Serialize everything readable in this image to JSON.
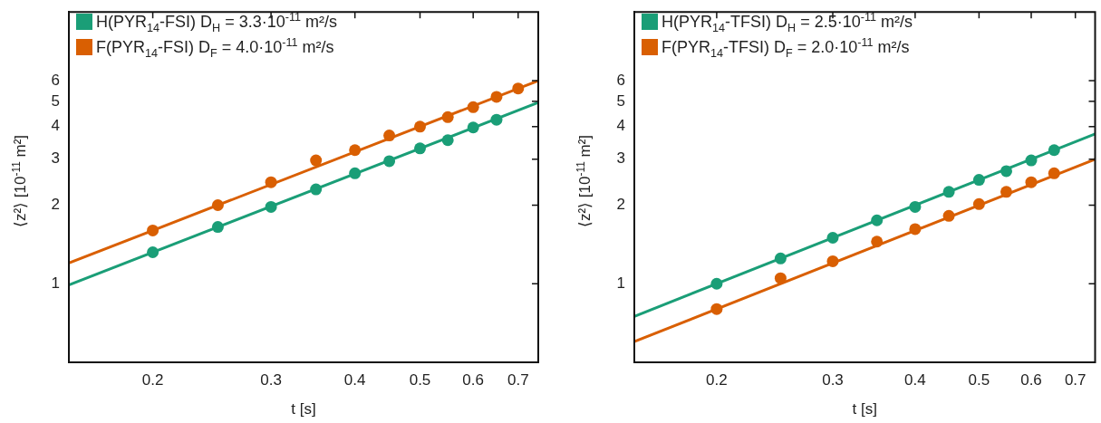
{
  "chart_data": [
    {
      "type": "scatter",
      "xlabel": "t [s]",
      "ylabel": "⟨z²⟩  [10$^{-11}$ m²]",
      "log": "xy",
      "grid": false,
      "legend": "top left",
      "xlim": [
        0.15,
        0.75
      ],
      "ylim": [
        0.5,
        11
      ],
      "xticks": [
        0.2,
        0.3,
        0.4,
        0.5,
        0.6,
        0.7
      ],
      "yticks": [
        1,
        2,
        3,
        4,
        5,
        6
      ],
      "series": [
        {
          "name": "H(PYR$_{14}$-FSI) D$_{H}$ = 3.3·10$^{-11}$ m²/s",
          "marker": "circle",
          "color": "#1a9e77",
          "x": [
            0.2,
            0.25,
            0.3,
            0.35,
            0.4,
            0.45,
            0.5,
            0.55,
            0.6,
            0.65
          ],
          "values": [
            1.32,
            1.65,
            1.97,
            2.3,
            2.65,
            2.95,
            3.3,
            3.55,
            3.97,
            4.25
          ]
        },
        {
          "name": "F(PYR$_{14}$-FSI) D$_{F}$ = 4.0·10$^{-11}$ m²/s",
          "marker": "circle",
          "color": "#d95f02",
          "x": [
            0.2,
            0.25,
            0.3,
            0.35,
            0.4,
            0.45,
            0.5,
            0.55,
            0.6,
            0.65,
            0.7
          ],
          "values": [
            1.6,
            2.0,
            2.45,
            2.97,
            3.25,
            3.7,
            4.0,
            4.35,
            4.75,
            5.2,
            5.6
          ]
        },
        {
          "type": "line",
          "marker": "none",
          "color": "#1a9e77",
          "x": [
            0.15,
            0.75
          ],
          "values": [
            0.99,
            4.95
          ]
        },
        {
          "type": "line",
          "marker": "none",
          "color": "#d95f02",
          "x": [
            0.15,
            0.75
          ],
          "values": [
            1.2,
            6.0
          ]
        }
      ]
    },
    {
      "type": "scatter",
      "xlabel": "t [s]",
      "ylabel": "⟨z²⟩  [10$^{-11}$ m²]",
      "log": "xy",
      "grid": false,
      "legend": "top left",
      "xlim": [
        0.15,
        0.75
      ],
      "ylim": [
        0.5,
        11
      ],
      "xticks": [
        0.2,
        0.3,
        0.4,
        0.5,
        0.6,
        0.7
      ],
      "yticks": [
        1,
        2,
        3,
        4,
        5,
        6
      ],
      "series": [
        {
          "name": "H(PYR$_{14}$-TFSI) D$_{H}$ = 2.5·10$^{-11}$ m²/s",
          "marker": "circle",
          "color": "#1a9e77",
          "x": [
            0.2,
            0.25,
            0.3,
            0.35,
            0.4,
            0.45,
            0.5,
            0.55,
            0.6,
            0.65
          ],
          "values": [
            1.0,
            1.25,
            1.5,
            1.75,
            1.97,
            2.25,
            2.5,
            2.7,
            2.97,
            3.25
          ]
        },
        {
          "name": "F(PYR$_{14}$-TFSI) D$_{F}$ = 2.0·10$^{-11}$ m²/s",
          "marker": "circle",
          "color": "#d95f02",
          "x": [
            0.2,
            0.25,
            0.3,
            0.35,
            0.4,
            0.45,
            0.5,
            0.55,
            0.6,
            0.65
          ],
          "values": [
            0.8,
            1.05,
            1.22,
            1.45,
            1.62,
            1.82,
            2.02,
            2.25,
            2.45,
            2.65
          ]
        },
        {
          "type": "line",
          "marker": "none",
          "color": "#1a9e77",
          "x": [
            0.15,
            0.75
          ],
          "values": [
            0.75,
            3.75
          ]
        },
        {
          "type": "line",
          "marker": "none",
          "color": "#d95f02",
          "x": [
            0.15,
            0.75
          ],
          "values": [
            0.6,
            3.0
          ]
        }
      ]
    }
  ]
}
